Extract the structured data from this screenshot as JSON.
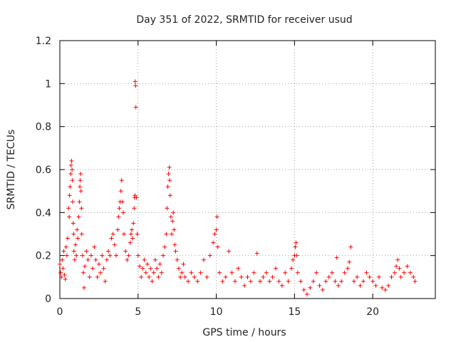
{
  "chart_data": {
    "type": "scatter",
    "title": "Day 351 of 2022, SRMTID for receiver usud",
    "xlabel": "GPS time / hours",
    "ylabel": "SRMTID / TECUs",
    "xlim": [
      0,
      24
    ],
    "ylim": [
      0,
      1.2
    ],
    "xticks": [
      0,
      5,
      10,
      15,
      20
    ],
    "yticks": [
      0,
      0.2,
      0.4,
      0.6,
      0.8,
      1,
      1.2
    ],
    "xtick_labels": [
      "0",
      "5",
      "10",
      "15",
      "20"
    ],
    "ytick_labels": [
      "0",
      "0.2",
      "0.4",
      "0.6",
      "0.8",
      "1",
      "1.2"
    ],
    "grid": true,
    "marker": "plus",
    "color": "#ff0000",
    "series": [
      {
        "name": "SRMTID",
        "points": [
          [
            0.0,
            0.16
          ],
          [
            0.05,
            0.12
          ],
          [
            0.1,
            0.1
          ],
          [
            0.15,
            0.18
          ],
          [
            0.2,
            0.14
          ],
          [
            0.25,
            0.22
          ],
          [
            0.3,
            0.11
          ],
          [
            0.35,
            0.09
          ],
          [
            0.4,
            0.24
          ],
          [
            0.45,
            0.2
          ],
          [
            0.5,
            0.28
          ],
          [
            0.55,
            0.42
          ],
          [
            0.6,
            0.38
          ],
          [
            0.62,
            0.48
          ],
          [
            0.65,
            0.52
          ],
          [
            0.7,
            0.58
          ],
          [
            0.72,
            0.62
          ],
          [
            0.75,
            0.64
          ],
          [
            0.78,
            0.6
          ],
          [
            0.8,
            0.55
          ],
          [
            0.82,
            0.45
          ],
          [
            0.85,
            0.35
          ],
          [
            0.88,
            0.3
          ],
          [
            0.9,
            0.22
          ],
          [
            0.95,
            0.18
          ],
          [
            1.0,
            0.25
          ],
          [
            1.05,
            0.2
          ],
          [
            1.1,
            0.32
          ],
          [
            1.15,
            0.28
          ],
          [
            1.2,
            0.38
          ],
          [
            1.25,
            0.45
          ],
          [
            1.28,
            0.52
          ],
          [
            1.3,
            0.55
          ],
          [
            1.33,
            0.58
          ],
          [
            1.35,
            0.5
          ],
          [
            1.38,
            0.42
          ],
          [
            1.4,
            0.3
          ],
          [
            1.45,
            0.2
          ],
          [
            1.5,
            0.12
          ],
          [
            1.55,
            0.05
          ],
          [
            1.6,
            0.15
          ],
          [
            1.7,
            0.22
          ],
          [
            1.8,
            0.18
          ],
          [
            1.9,
            0.1
          ],
          [
            2.0,
            0.2
          ],
          [
            2.1,
            0.14
          ],
          [
            2.2,
            0.24
          ],
          [
            2.3,
            0.18
          ],
          [
            2.4,
            0.1
          ],
          [
            2.5,
            0.16
          ],
          [
            2.6,
            0.12
          ],
          [
            2.7,
            0.2
          ],
          [
            2.8,
            0.14
          ],
          [
            2.9,
            0.08
          ],
          [
            3.0,
            0.18
          ],
          [
            3.1,
            0.22
          ],
          [
            3.2,
            0.2
          ],
          [
            3.3,
            0.28
          ],
          [
            3.4,
            0.3
          ],
          [
            3.5,
            0.25
          ],
          [
            3.6,
            0.2
          ],
          [
            3.7,
            0.32
          ],
          [
            3.75,
            0.38
          ],
          [
            3.8,
            0.42
          ],
          [
            3.85,
            0.45
          ],
          [
            3.9,
            0.5
          ],
          [
            3.95,
            0.55
          ],
          [
            4.0,
            0.45
          ],
          [
            4.05,
            0.4
          ],
          [
            4.1,
            0.3
          ],
          [
            4.2,
            0.22
          ],
          [
            4.3,
            0.18
          ],
          [
            4.4,
            0.2
          ],
          [
            4.5,
            0.26
          ],
          [
            4.55,
            0.3
          ],
          [
            4.6,
            0.32
          ],
          [
            4.65,
            0.28
          ],
          [
            4.7,
            0.35
          ],
          [
            4.75,
            0.42
          ],
          [
            4.78,
            0.47
          ],
          [
            4.8,
            0.48
          ],
          [
            4.82,
            1.01
          ],
          [
            4.84,
            0.99
          ],
          [
            4.86,
            0.89
          ],
          [
            4.9,
            0.47
          ],
          [
            4.95,
            0.3
          ],
          [
            5.0,
            0.2
          ],
          [
            5.1,
            0.15
          ],
          [
            5.2,
            0.1
          ],
          [
            5.3,
            0.14
          ],
          [
            5.4,
            0.18
          ],
          [
            5.5,
            0.12
          ],
          [
            5.6,
            0.16
          ],
          [
            5.7,
            0.1
          ],
          [
            5.8,
            0.14
          ],
          [
            5.9,
            0.08
          ],
          [
            6.0,
            0.12
          ],
          [
            6.1,
            0.18
          ],
          [
            6.2,
            0.14
          ],
          [
            6.3,
            0.1
          ],
          [
            6.4,
            0.16
          ],
          [
            6.5,
            0.12
          ],
          [
            6.6,
            0.2
          ],
          [
            6.7,
            0.24
          ],
          [
            6.8,
            0.3
          ],
          [
            6.85,
            0.42
          ],
          [
            6.9,
            0.52
          ],
          [
            6.95,
            0.58
          ],
          [
            7.0,
            0.61
          ],
          [
            7.02,
            0.55
          ],
          [
            7.05,
            0.48
          ],
          [
            7.1,
            0.38
          ],
          [
            7.15,
            0.3
          ],
          [
            7.2,
            0.36
          ],
          [
            7.25,
            0.4
          ],
          [
            7.3,
            0.32
          ],
          [
            7.35,
            0.25
          ],
          [
            7.4,
            0.22
          ],
          [
            7.5,
            0.18
          ],
          [
            7.6,
            0.14
          ],
          [
            7.7,
            0.1
          ],
          [
            7.8,
            0.12
          ],
          [
            7.9,
            0.16
          ],
          [
            8.0,
            0.1
          ],
          [
            8.2,
            0.08
          ],
          [
            8.4,
            0.12
          ],
          [
            8.6,
            0.1
          ],
          [
            8.8,
            0.08
          ],
          [
            9.0,
            0.12
          ],
          [
            9.2,
            0.18
          ],
          [
            9.4,
            0.1
          ],
          [
            9.6,
            0.2
          ],
          [
            9.8,
            0.26
          ],
          [
            9.9,
            0.3
          ],
          [
            10.0,
            0.32
          ],
          [
            10.05,
            0.38
          ],
          [
            10.1,
            0.24
          ],
          [
            10.2,
            0.12
          ],
          [
            10.4,
            0.08
          ],
          [
            10.6,
            0.1
          ],
          [
            10.8,
            0.22
          ],
          [
            11.0,
            0.12
          ],
          [
            11.2,
            0.08
          ],
          [
            11.4,
            0.14
          ],
          [
            11.6,
            0.1
          ],
          [
            11.8,
            0.06
          ],
          [
            12.0,
            0.1
          ],
          [
            12.2,
            0.08
          ],
          [
            12.4,
            0.12
          ],
          [
            12.6,
            0.21
          ],
          [
            12.8,
            0.08
          ],
          [
            13.0,
            0.1
          ],
          [
            13.2,
            0.12
          ],
          [
            13.4,
            0.08
          ],
          [
            13.6,
            0.1
          ],
          [
            13.8,
            0.14
          ],
          [
            14.0,
            0.08
          ],
          [
            14.2,
            0.06
          ],
          [
            14.4,
            0.12
          ],
          [
            14.6,
            0.08
          ],
          [
            14.8,
            0.14
          ],
          [
            14.9,
            0.18
          ],
          [
            15.0,
            0.2
          ],
          [
            15.05,
            0.24
          ],
          [
            15.1,
            0.26
          ],
          [
            15.15,
            0.2
          ],
          [
            15.2,
            0.12
          ],
          [
            15.4,
            0.08
          ],
          [
            15.6,
            0.04
          ],
          [
            15.8,
            0.02
          ],
          [
            16.0,
            0.05
          ],
          [
            16.2,
            0.08
          ],
          [
            16.4,
            0.12
          ],
          [
            16.6,
            0.06
          ],
          [
            16.8,
            0.04
          ],
          [
            17.0,
            0.08
          ],
          [
            17.2,
            0.1
          ],
          [
            17.4,
            0.12
          ],
          [
            17.6,
            0.08
          ],
          [
            17.7,
            0.19
          ],
          [
            17.8,
            0.06
          ],
          [
            18.0,
            0.08
          ],
          [
            18.2,
            0.12
          ],
          [
            18.4,
            0.14
          ],
          [
            18.5,
            0.17
          ],
          [
            18.6,
            0.24
          ],
          [
            18.8,
            0.08
          ],
          [
            19.0,
            0.1
          ],
          [
            19.2,
            0.06
          ],
          [
            19.4,
            0.08
          ],
          [
            19.6,
            0.12
          ],
          [
            19.8,
            0.1
          ],
          [
            20.0,
            0.08
          ],
          [
            20.2,
            0.06
          ],
          [
            20.4,
            0.1
          ],
          [
            20.6,
            0.05
          ],
          [
            20.8,
            0.04
          ],
          [
            21.0,
            0.06
          ],
          [
            21.2,
            0.1
          ],
          [
            21.4,
            0.12
          ],
          [
            21.5,
            0.15
          ],
          [
            21.6,
            0.18
          ],
          [
            21.7,
            0.14
          ],
          [
            21.8,
            0.1
          ],
          [
            22.0,
            0.12
          ],
          [
            22.2,
            0.15
          ],
          [
            22.4,
            0.12
          ],
          [
            22.6,
            0.1
          ],
          [
            22.7,
            0.08
          ]
        ]
      }
    ]
  }
}
